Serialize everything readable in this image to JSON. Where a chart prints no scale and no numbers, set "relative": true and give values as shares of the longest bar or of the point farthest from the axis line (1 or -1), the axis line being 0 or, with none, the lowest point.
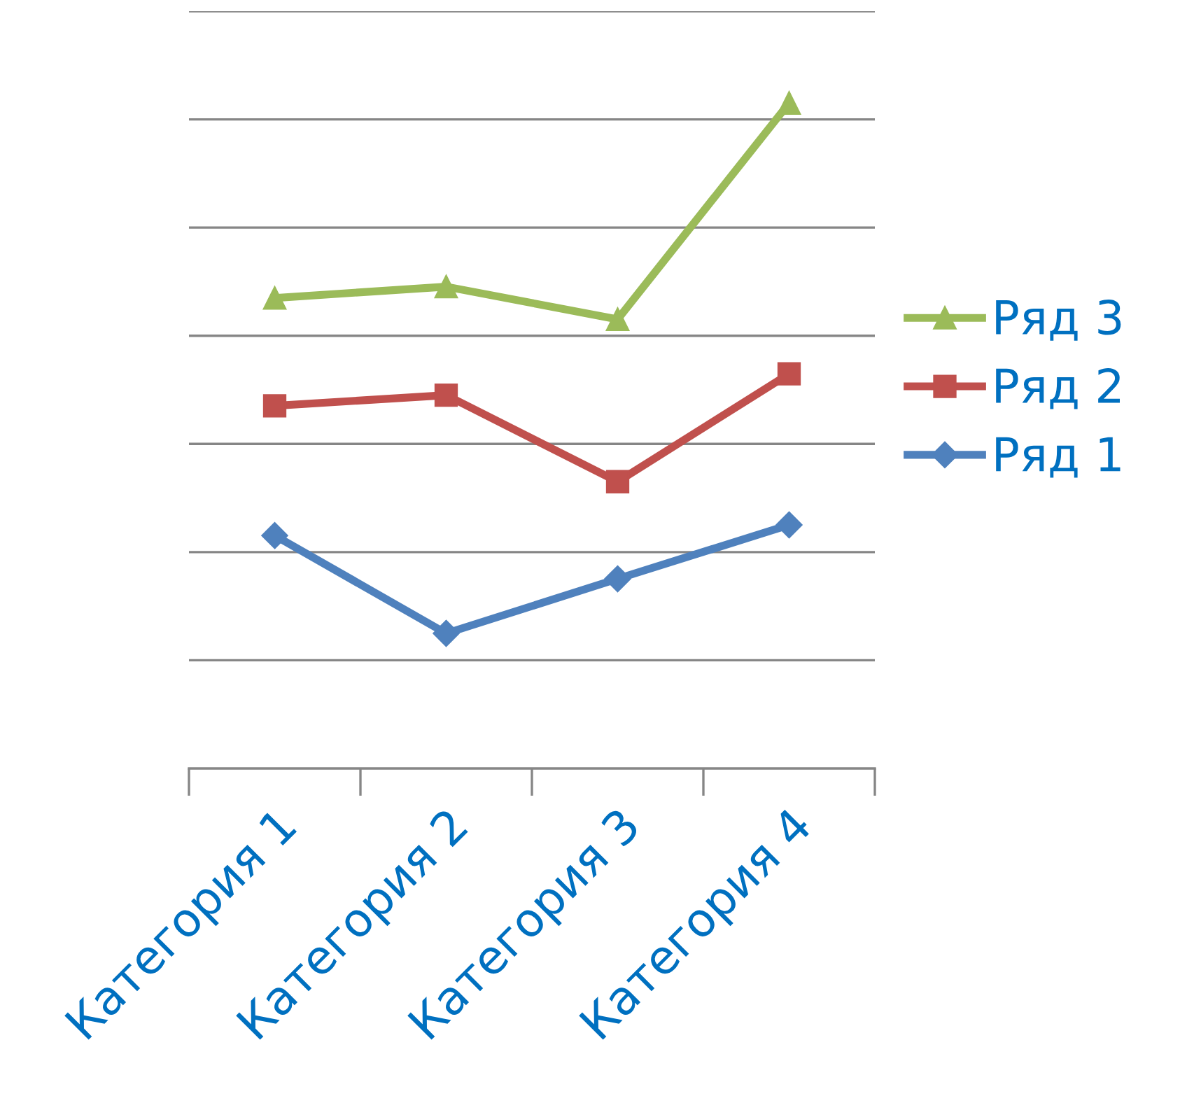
{
  "chart_data": {
    "type": "line",
    "relative": true,
    "categories": [
      "Категория 1",
      "Категория 2",
      "Категория 3",
      "Категория 4"
    ],
    "series": [
      {
        "name": "Ряд 1",
        "color": "#4f81bd",
        "marker": "diamond",
        "values": [
          0.35,
          0.203,
          0.285,
          0.366
        ]
      },
      {
        "name": "Ряд 2",
        "color": "#c0504d",
        "marker": "square",
        "values": [
          0.545,
          0.561,
          0.431,
          0.593
        ]
      },
      {
        "name": "Ряд 3",
        "color": "#9bbb59",
        "marker": "triangle",
        "values": [
          0.707,
          0.724,
          0.675,
          1
        ]
      }
    ],
    "grid": "y",
    "legend": "right",
    "line_style": "solid"
  }
}
